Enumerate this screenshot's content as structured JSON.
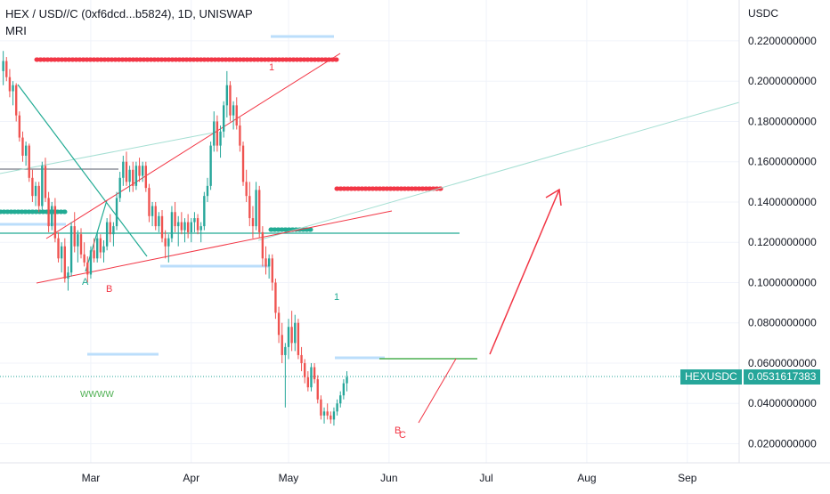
{
  "header": {
    "title": "HEX / USD//C (0xf6dcd...b5824), 1D, UNISWAP",
    "indicator": "MRI"
  },
  "price_axis": {
    "unit": "USDC"
  },
  "last_price": {
    "symbol": "HEXUSDC",
    "value": "0.0531617383"
  },
  "annotations": {
    "wave_a": "A",
    "wave_b": "B",
    "wave_c": "C",
    "wave_b2": "B",
    "top_1": "1",
    "wave_small_1": "1",
    "pattern_label": "WWWW"
  },
  "colors": {
    "up": "#26a69a",
    "down": "#ef5350",
    "trend": "#f23645",
    "teal": "#22ab94",
    "light_blue": "#b2dfdb",
    "axis_text": "#131722"
  },
  "chart_data": {
    "type": "candlestick",
    "title": "HEX / USD//C (0xf6dcd...b5824), 1D, UNISWAP",
    "ylabel": "USDC",
    "y_ticks": [
      "0.2200000000",
      "0.2000000000",
      "0.1800000000",
      "0.1600000000",
      "0.1400000000",
      "0.1200000000",
      "0.1000000000",
      "0.0800000000",
      "0.0600000000",
      "0.0400000000",
      "0.0200000000"
    ],
    "y_tick_values": [
      0.22,
      0.2,
      0.18,
      0.16,
      0.14,
      0.12,
      0.1,
      0.08,
      0.06,
      0.04,
      0.02
    ],
    "x_ticks": [
      "Mar",
      "Apr",
      "May",
      "Jun",
      "Jul",
      "Aug",
      "Sep"
    ],
    "x_tick_days": [
      28,
      59,
      89,
      120,
      150,
      181,
      212
    ],
    "ylim": [
      0.0105,
      0.2403
    ],
    "xlim": [
      0,
      228
    ],
    "last_price": 0.0531617383,
    "grid": true,
    "candles": [
      [
        1,
        0.205,
        0.215,
        0.198,
        0.21
      ],
      [
        2,
        0.21,
        0.212,
        0.2,
        0.202
      ],
      [
        3,
        0.202,
        0.206,
        0.192,
        0.195
      ],
      [
        4,
        0.195,
        0.2,
        0.188,
        0.198
      ],
      [
        5,
        0.198,
        0.199,
        0.18,
        0.183
      ],
      [
        6,
        0.183,
        0.185,
        0.17,
        0.172
      ],
      [
        7,
        0.172,
        0.175,
        0.16,
        0.163
      ],
      [
        8,
        0.163,
        0.17,
        0.158,
        0.168
      ],
      [
        9,
        0.168,
        0.169,
        0.15,
        0.152
      ],
      [
        10,
        0.152,
        0.156,
        0.14,
        0.143
      ],
      [
        11,
        0.143,
        0.15,
        0.138,
        0.148
      ],
      [
        12,
        0.148,
        0.15,
        0.135,
        0.138
      ],
      [
        13,
        0.138,
        0.16,
        0.136,
        0.158
      ],
      [
        14,
        0.158,
        0.162,
        0.14,
        0.142
      ],
      [
        15,
        0.142,
        0.145,
        0.125,
        0.128
      ],
      [
        16,
        0.128,
        0.14,
        0.126,
        0.138
      ],
      [
        17,
        0.138,
        0.142,
        0.12,
        0.122
      ],
      [
        18,
        0.122,
        0.125,
        0.11,
        0.112
      ],
      [
        19,
        0.112,
        0.12,
        0.105,
        0.118
      ],
      [
        20,
        0.118,
        0.122,
        0.1,
        0.102
      ],
      [
        21,
        0.102,
        0.108,
        0.096,
        0.105
      ],
      [
        22,
        0.105,
        0.13,
        0.103,
        0.128
      ],
      [
        23,
        0.128,
        0.135,
        0.115,
        0.118
      ],
      [
        24,
        0.118,
        0.126,
        0.11,
        0.124
      ],
      [
        25,
        0.124,
        0.127,
        0.112,
        0.114
      ],
      [
        26,
        0.114,
        0.12,
        0.108,
        0.11
      ],
      [
        27,
        0.11,
        0.113,
        0.1,
        0.104
      ],
      [
        28,
        0.104,
        0.118,
        0.102,
        0.116
      ],
      [
        29,
        0.116,
        0.122,
        0.11,
        0.112
      ],
      [
        30,
        0.112,
        0.125,
        0.11,
        0.122
      ],
      [
        31,
        0.122,
        0.124,
        0.112,
        0.115
      ],
      [
        32,
        0.115,
        0.121,
        0.11,
        0.118
      ],
      [
        33,
        0.118,
        0.132,
        0.116,
        0.13
      ],
      [
        34,
        0.13,
        0.134,
        0.12,
        0.124
      ],
      [
        35,
        0.124,
        0.13,
        0.118,
        0.128
      ],
      [
        36,
        0.128,
        0.145,
        0.126,
        0.142
      ],
      [
        37,
        0.142,
        0.155,
        0.14,
        0.152
      ],
      [
        38,
        0.152,
        0.163,
        0.148,
        0.16
      ],
      [
        39,
        0.16,
        0.165,
        0.148,
        0.15
      ],
      [
        40,
        0.15,
        0.158,
        0.145,
        0.156
      ],
      [
        41,
        0.156,
        0.16,
        0.145,
        0.148
      ],
      [
        42,
        0.148,
        0.16,
        0.146,
        0.158
      ],
      [
        43,
        0.158,
        0.162,
        0.15,
        0.153
      ],
      [
        44,
        0.153,
        0.16,
        0.15,
        0.158
      ],
      [
        45,
        0.158,
        0.16,
        0.145,
        0.147
      ],
      [
        46,
        0.147,
        0.149,
        0.13,
        0.133
      ],
      [
        47,
        0.133,
        0.14,
        0.128,
        0.138
      ],
      [
        48,
        0.138,
        0.14,
        0.126,
        0.128
      ],
      [
        49,
        0.128,
        0.135,
        0.125,
        0.133
      ],
      [
        50,
        0.133,
        0.136,
        0.12,
        0.122
      ],
      [
        51,
        0.122,
        0.126,
        0.112,
        0.118
      ],
      [
        52,
        0.118,
        0.124,
        0.11,
        0.122
      ],
      [
        53,
        0.122,
        0.138,
        0.12,
        0.135
      ],
      [
        54,
        0.135,
        0.14,
        0.125,
        0.128
      ],
      [
        55,
        0.128,
        0.133,
        0.118,
        0.13
      ],
      [
        56,
        0.13,
        0.135,
        0.124,
        0.126
      ],
      [
        57,
        0.126,
        0.132,
        0.12,
        0.13
      ],
      [
        58,
        0.13,
        0.134,
        0.122,
        0.125
      ],
      [
        59,
        0.125,
        0.132,
        0.12,
        0.13
      ],
      [
        60,
        0.13,
        0.135,
        0.125,
        0.132
      ],
      [
        61,
        0.132,
        0.134,
        0.124,
        0.126
      ],
      [
        62,
        0.126,
        0.13,
        0.12,
        0.128
      ],
      [
        63,
        0.128,
        0.145,
        0.126,
        0.143
      ],
      [
        64,
        0.143,
        0.152,
        0.14,
        0.148
      ],
      [
        65,
        0.148,
        0.17,
        0.146,
        0.168
      ],
      [
        66,
        0.168,
        0.185,
        0.165,
        0.18
      ],
      [
        67,
        0.18,
        0.183,
        0.165,
        0.168
      ],
      [
        68,
        0.168,
        0.178,
        0.162,
        0.175
      ],
      [
        69,
        0.175,
        0.19,
        0.172,
        0.188
      ],
      [
        70,
        0.188,
        0.205,
        0.182,
        0.198
      ],
      [
        71,
        0.198,
        0.2,
        0.18,
        0.183
      ],
      [
        72,
        0.183,
        0.19,
        0.176,
        0.188
      ],
      [
        73,
        0.188,
        0.192,
        0.176,
        0.178
      ],
      [
        74,
        0.178,
        0.182,
        0.165,
        0.168
      ],
      [
        75,
        0.168,
        0.17,
        0.148,
        0.15
      ],
      [
        76,
        0.15,
        0.156,
        0.14,
        0.143
      ],
      [
        77,
        0.143,
        0.15,
        0.128,
        0.132
      ],
      [
        78,
        0.132,
        0.138,
        0.122,
        0.128
      ],
      [
        79,
        0.128,
        0.15,
        0.126,
        0.146
      ],
      [
        80,
        0.146,
        0.148,
        0.122,
        0.125
      ],
      [
        81,
        0.125,
        0.128,
        0.108,
        0.112
      ],
      [
        82,
        0.112,
        0.118,
        0.104,
        0.108
      ],
      [
        83,
        0.108,
        0.114,
        0.102,
        0.112
      ],
      [
        84,
        0.112,
        0.114,
        0.096,
        0.1
      ],
      [
        85,
        0.1,
        0.102,
        0.082,
        0.085
      ],
      [
        86,
        0.085,
        0.088,
        0.07,
        0.074
      ],
      [
        87,
        0.074,
        0.08,
        0.06,
        0.064
      ],
      [
        88,
        0.064,
        0.07,
        0.038,
        0.068
      ],
      [
        89,
        0.068,
        0.082,
        0.062,
        0.078
      ],
      [
        90,
        0.078,
        0.086,
        0.066,
        0.07
      ],
      [
        91,
        0.07,
        0.084,
        0.066,
        0.08
      ],
      [
        92,
        0.08,
        0.082,
        0.062,
        0.064
      ],
      [
        93,
        0.064,
        0.068,
        0.056,
        0.06
      ],
      [
        94,
        0.06,
        0.062,
        0.05,
        0.053
      ],
      [
        95,
        0.053,
        0.056,
        0.046,
        0.048
      ],
      [
        96,
        0.048,
        0.06,
        0.046,
        0.058
      ],
      [
        97,
        0.058,
        0.06,
        0.05,
        0.052
      ],
      [
        98,
        0.052,
        0.054,
        0.04,
        0.042
      ],
      [
        99,
        0.042,
        0.044,
        0.032,
        0.034
      ],
      [
        100,
        0.034,
        0.038,
        0.03,
        0.036
      ],
      [
        101,
        0.036,
        0.04,
        0.032,
        0.034
      ],
      [
        102,
        0.034,
        0.036,
        0.03,
        0.032
      ],
      [
        103,
        0.032,
        0.038,
        0.029,
        0.036
      ],
      [
        104,
        0.036,
        0.042,
        0.034,
        0.04
      ],
      [
        105,
        0.04,
        0.046,
        0.038,
        0.044
      ],
      [
        106,
        0.044,
        0.052,
        0.042,
        0.05
      ],
      [
        107,
        0.05,
        0.056,
        0.046,
        0.053
      ]
    ]
  }
}
